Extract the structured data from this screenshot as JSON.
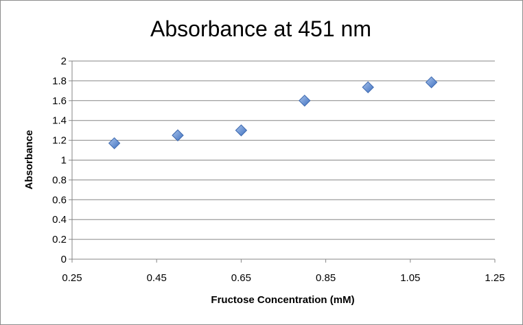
{
  "chart_data": {
    "type": "scatter",
    "title": "Absorbance at 451 nm",
    "xlabel": "Fructose Concentration (mM)",
    "ylabel": "Absorbance",
    "xlim": [
      0.25,
      1.25
    ],
    "ylim": [
      0,
      2
    ],
    "x_ticks": [
      "0.25",
      "0.45",
      "0.65",
      "0.85",
      "1.05",
      "1.25"
    ],
    "y_ticks": [
      "0",
      "0.2",
      "0.4",
      "0.6",
      "0.8",
      "1",
      "1.2",
      "1.4",
      "1.6",
      "1.8",
      "2"
    ],
    "grid": "horizontal major",
    "legend": "none",
    "marker": "diamond",
    "series": [
      {
        "x": [
          0.35,
          0.5,
          0.65,
          0.8,
          0.95,
          1.1
        ],
        "y": [
          1.17,
          1.25,
          1.3,
          1.6,
          1.735,
          1.785
        ],
        "color": "#4f81bd"
      }
    ]
  }
}
